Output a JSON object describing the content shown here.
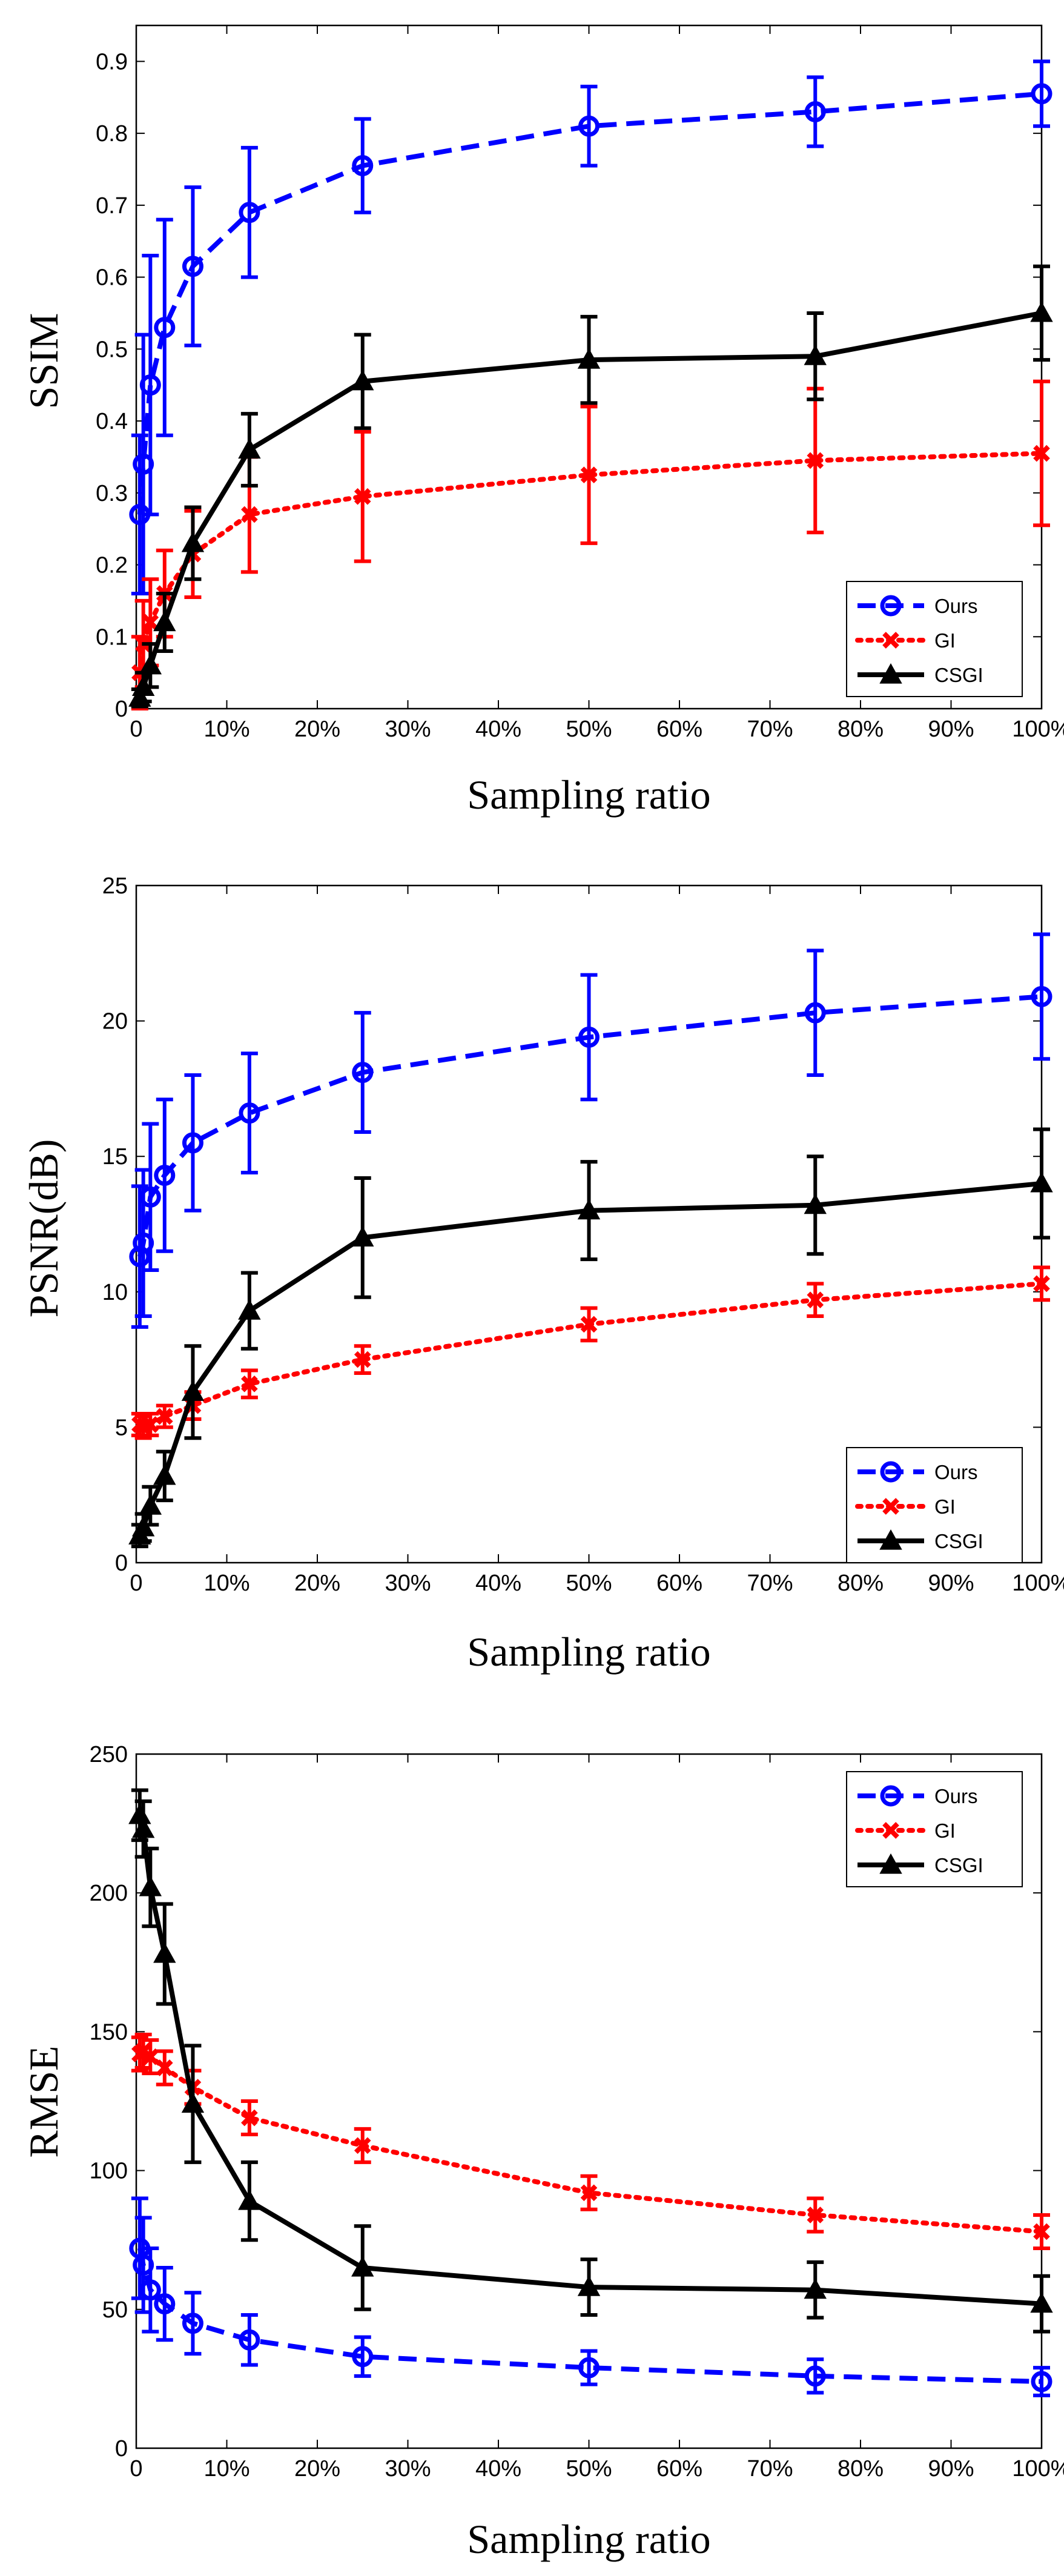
{
  "chart_data": [
    {
      "type": "line",
      "title": "",
      "xlabel": "Sampling ratio",
      "ylabel": "SSIM",
      "xlim": [
        0,
        100
      ],
      "ylim": [
        0,
        0.95
      ],
      "xticks": [
        0,
        10,
        20,
        30,
        40,
        50,
        60,
        70,
        80,
        90,
        100
      ],
      "xtick_labels": [
        "0",
        "10%",
        "20%",
        "30%",
        "40%",
        "50%",
        "60%",
        "70%",
        "80%",
        "90%",
        "100%"
      ],
      "yticks": [
        0,
        0.1,
        0.2,
        0.3,
        0.4,
        0.5,
        0.6,
        0.7,
        0.8,
        0.9
      ],
      "ytick_labels": [
        "0",
        "0.1",
        "0.2",
        "0.3",
        "0.4",
        "0.5",
        "0.6",
        "0.7",
        "0.8",
        "0.9"
      ],
      "legend_position": "bottom-right",
      "x": [
        0.39,
        0.78,
        1.56,
        3.13,
        6.25,
        12.5,
        25,
        50,
        75,
        100
      ],
      "series": [
        {
          "name": "Ours",
          "color": "#0000ff",
          "style": "dashed",
          "marker": "circle",
          "values": [
            0.27,
            0.34,
            0.45,
            0.53,
            0.615,
            0.69,
            0.755,
            0.81,
            0.83,
            0.855
          ],
          "errors": [
            0.11,
            0.18,
            0.18,
            0.15,
            0.11,
            0.09,
            0.065,
            0.055,
            0.048,
            0.045
          ]
        },
        {
          "name": "GI",
          "color": "#ff0000",
          "style": "dotted",
          "marker": "x",
          "values": [
            0.05,
            0.09,
            0.12,
            0.16,
            0.215,
            0.27,
            0.295,
            0.325,
            0.345,
            0.355
          ],
          "errors": [
            0.05,
            0.06,
            0.06,
            0.06,
            0.06,
            0.08,
            0.09,
            0.095,
            0.1,
            0.1
          ]
        },
        {
          "name": "CSGI",
          "color": "#000000",
          "style": "solid",
          "marker": "triangle",
          "values": [
            0.015,
            0.03,
            0.06,
            0.12,
            0.23,
            0.36,
            0.455,
            0.485,
            0.49,
            0.55
          ],
          "errors": [
            0.012,
            0.02,
            0.03,
            0.04,
            0.05,
            0.05,
            0.065,
            0.06,
            0.06,
            0.065
          ]
        }
      ]
    },
    {
      "type": "line",
      "title": "",
      "xlabel": "Sampling ratio",
      "ylabel": "PSNR(dB)",
      "xlim": [
        0,
        100
      ],
      "ylim": [
        0,
        25
      ],
      "xticks": [
        0,
        10,
        20,
        30,
        40,
        50,
        60,
        70,
        80,
        90,
        100
      ],
      "xtick_labels": [
        "0",
        "10%",
        "20%",
        "30%",
        "40%",
        "50%",
        "60%",
        "70%",
        "80%",
        "90%",
        "100%"
      ],
      "yticks": [
        0,
        5,
        10,
        15,
        20,
        25
      ],
      "ytick_labels": [
        "0",
        "5",
        "10",
        "15",
        "20",
        "25"
      ],
      "legend_position": "bottom-right",
      "x": [
        0.39,
        0.78,
        1.56,
        3.13,
        6.25,
        12.5,
        25,
        50,
        75,
        100
      ],
      "series": [
        {
          "name": "Ours",
          "color": "#0000ff",
          "style": "dashed",
          "marker": "circle",
          "values": [
            11.3,
            11.8,
            13.5,
            14.3,
            15.5,
            16.6,
            18.1,
            19.4,
            20.3,
            20.9
          ],
          "errors": [
            2.6,
            2.7,
            2.7,
            2.8,
            2.5,
            2.2,
            2.2,
            2.3,
            2.3,
            2.3
          ]
        },
        {
          "name": "GI",
          "color": "#ff0000",
          "style": "dotted",
          "marker": "x",
          "values": [
            5.1,
            5.0,
            5.1,
            5.4,
            5.8,
            6.6,
            7.5,
            8.8,
            9.7,
            10.3
          ],
          "errors": [
            0.4,
            0.4,
            0.4,
            0.4,
            0.5,
            0.5,
            0.5,
            0.6,
            0.6,
            0.6
          ]
        },
        {
          "name": "CSGI",
          "color": "#000000",
          "style": "solid",
          "marker": "triangle",
          "values": [
            1.0,
            1.3,
            2.1,
            3.2,
            6.3,
            9.3,
            12.0,
            13.0,
            13.2,
            14.0
          ],
          "errors": [
            0.4,
            0.5,
            0.7,
            0.9,
            1.7,
            1.4,
            2.2,
            1.8,
            1.8,
            2.0
          ]
        }
      ]
    },
    {
      "type": "line",
      "title": "",
      "xlabel": "Sampling ratio",
      "ylabel": "RMSE",
      "xlim": [
        0,
        100
      ],
      "ylim": [
        0,
        250
      ],
      "xticks": [
        0,
        10,
        20,
        30,
        40,
        50,
        60,
        70,
        80,
        90,
        100
      ],
      "xtick_labels": [
        "0",
        "10%",
        "20%",
        "30%",
        "40%",
        "50%",
        "60%",
        "70%",
        "80%",
        "90%",
        "100%"
      ],
      "yticks": [
        0,
        50,
        100,
        150,
        200,
        250
      ],
      "ytick_labels": [
        "0",
        "50",
        "100",
        "150",
        "200",
        "250"
      ],
      "legend_position": "top-right",
      "x": [
        0.39,
        0.78,
        1.56,
        3.13,
        6.25,
        12.5,
        25,
        50,
        75,
        100
      ],
      "series": [
        {
          "name": "Ours",
          "color": "#0000ff",
          "style": "dashed",
          "marker": "circle",
          "values": [
            72,
            66,
            57,
            52,
            45,
            39,
            33,
            29,
            26,
            24
          ],
          "errors": [
            18,
            17,
            15,
            13,
            11,
            9,
            7,
            6,
            6,
            5
          ]
        },
        {
          "name": "GI",
          "color": "#ff0000",
          "style": "dotted",
          "marker": "x",
          "values": [
            142,
            143,
            141,
            137,
            130,
            119,
            109,
            92,
            84,
            78
          ],
          "errors": [
            6,
            6,
            6,
            6,
            6,
            6,
            6,
            6,
            6,
            6
          ]
        },
        {
          "name": "CSGI",
          "color": "#000000",
          "style": "solid",
          "marker": "triangle",
          "values": [
            228,
            223,
            202,
            178,
            124,
            89,
            65,
            58,
            57,
            52
          ],
          "errors": [
            9,
            10,
            14,
            18,
            21,
            14,
            15,
            10,
            10,
            10
          ]
        }
      ]
    }
  ]
}
